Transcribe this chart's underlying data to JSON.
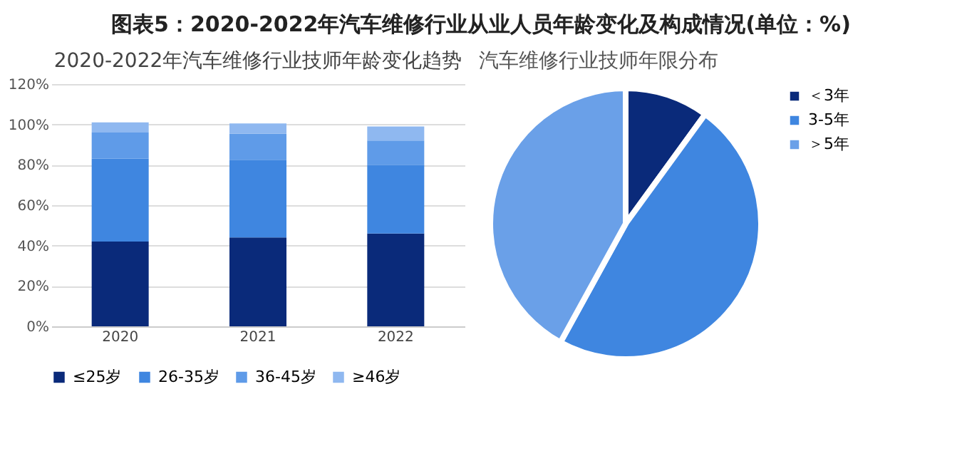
{
  "chart_data": [
    {
      "type": "bar",
      "title": "图表5：2020-2022年汽车维修行业从业人员年龄变化及构成情况(单位：%)",
      "subtitle": "2020-2022年汽车维修行业技师年龄变化趋势",
      "categories": [
        "2020",
        "2021",
        "2022"
      ],
      "stacked": true,
      "series": [
        {
          "name": "≤25岁",
          "color": "#0a2a7a",
          "values": [
            42,
            44,
            46
          ]
        },
        {
          "name": "26-35岁",
          "color": "#3f86e0",
          "values": [
            41,
            38.5,
            34
          ]
        },
        {
          "name": "36-45岁",
          "color": "#5f9be8",
          "values": [
            13,
            13,
            12
          ]
        },
        {
          "name": "≥46岁",
          "color": "#8fb8f0",
          "values": [
            5,
            5,
            7
          ]
        }
      ],
      "ylim": [
        0,
        120
      ],
      "yticks": [
        {
          "value": 0,
          "label": "0%"
        },
        {
          "value": 20,
          "label": "20%"
        },
        {
          "value": 40,
          "label": "40%"
        },
        {
          "value": 60,
          "label": "60%"
        },
        {
          "value": 80,
          "label": "80%"
        },
        {
          "value": 100,
          "label": "100%"
        },
        {
          "value": 120,
          "label": "120%"
        }
      ],
      "grid": "y",
      "legend": "bottom"
    },
    {
      "type": "pie",
      "title": "汽车维修行业技师年限分布",
      "categories": [
        "＜3年",
        "3-5年",
        "＞5年"
      ],
      "values": [
        10,
        48,
        42
      ],
      "colors": [
        "#0a2a7a",
        "#3f86e0",
        "#6aa0e8"
      ],
      "legend": "right"
    }
  ]
}
